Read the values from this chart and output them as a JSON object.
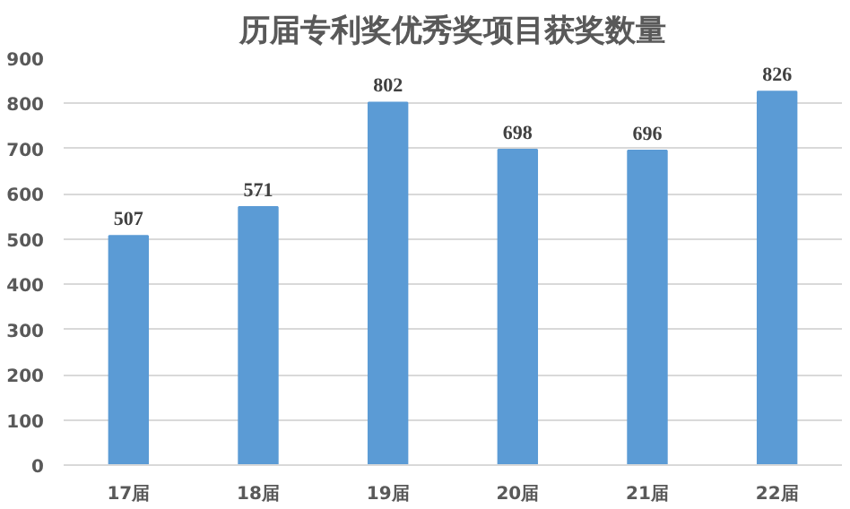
{
  "chart_data": {
    "type": "bar",
    "title": "历届专利奖优秀奖项目获奖数量",
    "categories": [
      "17届",
      "18届",
      "19届",
      "20届",
      "21届",
      "22届"
    ],
    "values": [
      507,
      571,
      802,
      698,
      696,
      826
    ],
    "color": "#5b9bd5",
    "ylim": [
      0,
      900
    ],
    "yticks": [
      0,
      100,
      200,
      300,
      400,
      500,
      600,
      700,
      800,
      900
    ],
    "grid": "y",
    "data_labels": true
  }
}
